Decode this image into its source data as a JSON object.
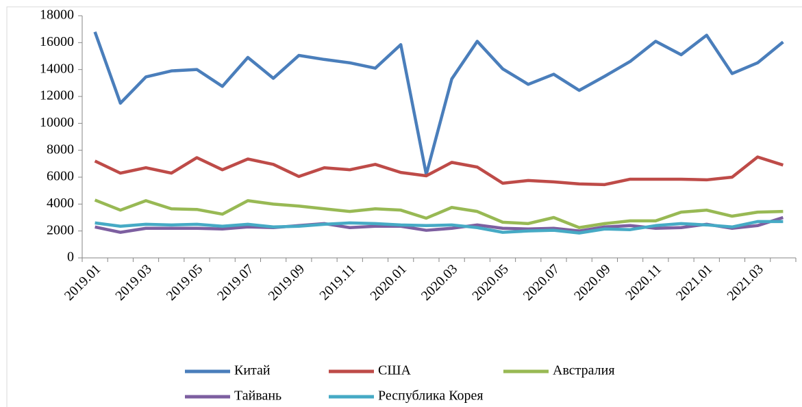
{
  "chart_data": {
    "type": "line",
    "categories": [
      "2019.01",
      null,
      "2019.03",
      null,
      "2019.05",
      null,
      "2019.07",
      null,
      "2019.09",
      null,
      "2019.11",
      null,
      "2020.01",
      null,
      "2020.03",
      null,
      "2020.05",
      null,
      "2020.07",
      null,
      "2020.09",
      null,
      "2020.11",
      null,
      "2021.01",
      null,
      "2021.03",
      null
    ],
    "series": [
      {
        "name": "Китай",
        "color": "#4a7ebb",
        "values": [
          16800,
          11500,
          13450,
          13900,
          14000,
          12750,
          14900,
          13350,
          15050,
          14750,
          14500,
          14100,
          15850,
          6200,
          13300,
          16100,
          14050,
          12900,
          13650,
          12450,
          13500,
          14600,
          16100,
          15100,
          16550,
          13700,
          14500,
          16050
        ]
      },
      {
        "name": "США",
        "color": "#be4b48",
        "values": [
          7200,
          6300,
          6700,
          6300,
          7450,
          6550,
          7350,
          6950,
          6050,
          6700,
          6550,
          6950,
          6350,
          6100,
          7100,
          6750,
          5550,
          5750,
          5650,
          5500,
          5450,
          5850,
          5850,
          5850,
          5800,
          6000,
          7500,
          6900
        ]
      },
      {
        "name": "Австралия",
        "color": "#98b954",
        "values": [
          4300,
          3550,
          4250,
          3650,
          3600,
          3250,
          4250,
          4000,
          3850,
          3650,
          3450,
          3650,
          3550,
          2950,
          3750,
          3450,
          2650,
          2550,
          3000,
          2250,
          2550,
          2750,
          2750,
          3400,
          3550,
          3100,
          3400,
          3450
        ]
      },
      {
        "name": "Тайвань",
        "color": "#7d5fa0",
        "values": [
          2300,
          1900,
          2200,
          2200,
          2200,
          2150,
          2300,
          2250,
          2400,
          2550,
          2250,
          2350,
          2350,
          2050,
          2200,
          2450,
          2200,
          2150,
          2200,
          2000,
          2300,
          2400,
          2200,
          2250,
          2500,
          2200,
          2400,
          3000
        ]
      },
      {
        "name": "Республика Корея",
        "color": "#46aac5",
        "values": [
          2600,
          2350,
          2500,
          2450,
          2500,
          2350,
          2500,
          2300,
          2350,
          2500,
          2600,
          2550,
          2450,
          2400,
          2450,
          2250,
          1900,
          2000,
          2050,
          1850,
          2150,
          2100,
          2400,
          2550,
          2450,
          2300,
          2700,
          2700
        ]
      }
    ],
    "ylim": [
      0,
      18000
    ],
    "yticks": [
      0,
      2000,
      4000,
      6000,
      8000,
      10000,
      12000,
      14000,
      16000,
      18000
    ],
    "grid": false
  }
}
